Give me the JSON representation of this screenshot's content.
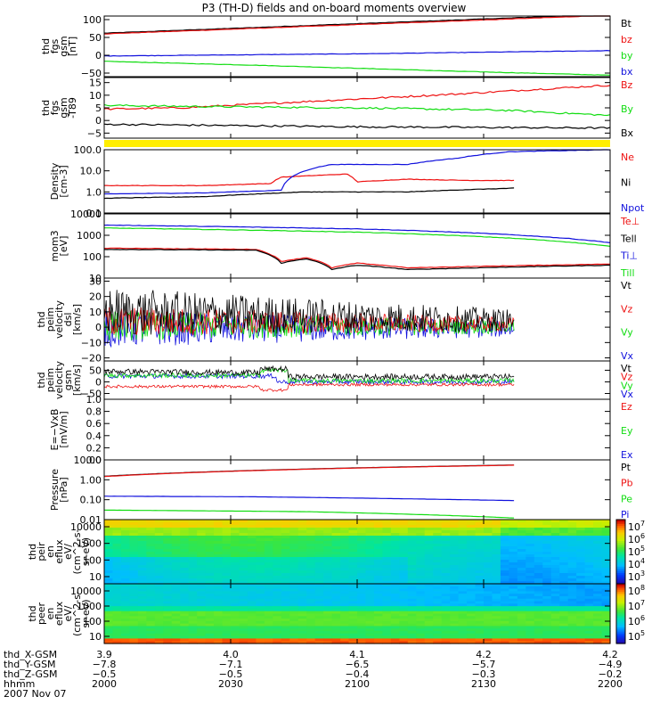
{
  "title": "P3 (TH-D) fields and on-board moments overview",
  "colors": {
    "black": "#000000",
    "red": "#ee1111",
    "green": "#11dd11",
    "blue": "#1111dd",
    "yellow": "#ffee00"
  },
  "chart_data": [
    {
      "id": "p1",
      "type": "line",
      "ylabel": [
        "thd",
        "fgs",
        "gsm",
        "[nT]"
      ],
      "yticks": [
        "100",
        "50",
        "0",
        "−50"
      ],
      "ylim": [
        -60,
        110
      ],
      "legend": [
        {
          "name": "Bt",
          "color": "black"
        },
        {
          "name": "bz",
          "color": "red"
        },
        {
          "name": "by",
          "color": "green"
        },
        {
          "name": "bx",
          "color": "blue"
        }
      ],
      "series": [
        {
          "name": "Bt",
          "color": "black",
          "x": [
            0,
            1
          ],
          "y": [
            62,
            115
          ]
        },
        {
          "name": "bz",
          "color": "red",
          "x": [
            0,
            1
          ],
          "y": [
            60,
            112
          ]
        },
        {
          "name": "by",
          "color": "green",
          "x": [
            0,
            0.3,
            0.7,
            1
          ],
          "y": [
            -17,
            -28,
            -45,
            -56
          ]
        },
        {
          "name": "bx",
          "color": "blue",
          "x": [
            0,
            0.5,
            1
          ],
          "y": [
            -2,
            4,
            13
          ]
        }
      ]
    },
    {
      "id": "p2",
      "type": "line",
      "ylabel": [
        "thd",
        "fgs",
        "gsm",
        "-T89"
      ],
      "yticks": [
        "15",
        "10",
        "5",
        "0",
        "−5"
      ],
      "ylim": [
        -7,
        17
      ],
      "legend": [
        {
          "name": "Bz",
          "color": "red"
        },
        {
          "name": "By",
          "color": "green"
        },
        {
          "name": "Bx",
          "color": "black"
        }
      ],
      "series": [
        {
          "name": "Bz",
          "color": "red",
          "x": [
            0,
            0.15,
            0.4,
            0.7,
            1
          ],
          "y": [
            4.5,
            5,
            7.5,
            10.5,
            14
          ]
        },
        {
          "name": "By",
          "color": "green",
          "x": [
            0,
            0.2,
            0.5,
            0.8,
            1
          ],
          "y": [
            6,
            5.5,
            5,
            4,
            2
          ]
        },
        {
          "name": "Bx",
          "color": "black",
          "x": [
            0,
            0.5,
            1
          ],
          "y": [
            -1.5,
            -2.5,
            -3
          ]
        }
      ]
    },
    {
      "id": "p3",
      "type": "line",
      "ylabel": [
        "Density",
        "[cm-3]"
      ],
      "yticks": [
        "100.0",
        "10.0",
        "1.0",
        "0.1"
      ],
      "ylim": [
        0.1,
        100
      ],
      "log": true,
      "legend": [
        {
          "name": "Ne",
          "color": "red"
        },
        {
          "name": "Ni",
          "color": "black"
        },
        {
          "name": "Npot",
          "color": "blue"
        }
      ],
      "series": [
        {
          "name": "Ne",
          "color": "red",
          "x": [
            0,
            0.2,
            0.33,
            0.35,
            0.48,
            0.5,
            0.6,
            0.72,
            0.81
          ],
          "y": [
            2,
            2,
            2.5,
            5,
            7,
            3,
            4,
            3.5,
            3.5
          ]
        },
        {
          "name": "Ni",
          "color": "black",
          "x": [
            0,
            0.2,
            0.4,
            0.6,
            0.81
          ],
          "y": [
            0.5,
            0.6,
            1,
            1,
            1.5
          ]
        },
        {
          "name": "Npot",
          "color": "blue",
          "x": [
            0,
            0.2,
            0.35,
            0.45,
            0.5,
            0.6,
            0.7,
            0.8,
            1
          ],
          "y": [
            0.8,
            0.9,
            1.2,
            20,
            20,
            20,
            40,
            80,
            100
          ]
        }
      ]
    },
    {
      "id": "p4",
      "type": "line",
      "ylabel": [
        "mom3",
        "[eV]"
      ],
      "yticks": [
        "10000",
        "1000",
        "100",
        "10"
      ],
      "ylim": [
        10,
        10000
      ],
      "log": true,
      "legend": [
        {
          "name": "Te⊥",
          "color": "red"
        },
        {
          "name": "Tell",
          "color": "black"
        },
        {
          "name": "Ti⊥",
          "color": "blue"
        },
        {
          "name": "Till",
          "color": "green"
        }
      ],
      "series": [
        {
          "name": "Te⊥",
          "color": "red",
          "x": [
            0,
            0.3,
            0.35,
            0.4,
            0.45,
            0.5,
            0.6,
            1
          ],
          "y": [
            250,
            220,
            60,
            90,
            30,
            50,
            30,
            45
          ]
        },
        {
          "name": "Tell",
          "color": "black",
          "x": [
            0,
            0.3,
            0.35,
            0.4,
            0.45,
            0.5,
            0.6,
            1
          ],
          "y": [
            220,
            200,
            50,
            80,
            25,
            40,
            25,
            40
          ]
        },
        {
          "name": "Ti⊥",
          "color": "blue",
          "x": [
            0,
            0.5,
            1
          ],
          "y": [
            3000,
            2000,
            450
          ]
        },
        {
          "name": "Till",
          "color": "green",
          "x": [
            0,
            0.5,
            1
          ],
          "y": [
            2200,
            1400,
            300
          ]
        }
      ]
    },
    {
      "id": "p5",
      "type": "line",
      "ylabel": [
        "thd",
        "peim",
        "velocity",
        "dsl",
        "[km/s]"
      ],
      "yticks": [
        "30",
        "20",
        "10",
        "0",
        "−10",
        "−20"
      ],
      "ylim": [
        -22,
        32
      ],
      "legend": [
        {
          "name": "Vt",
          "color": "black"
        },
        {
          "name": "Vz",
          "color": "red"
        },
        {
          "name": "Vy",
          "color": "green"
        },
        {
          "name": "Vx",
          "color": "blue"
        }
      ],
      "series": []
    },
    {
      "id": "p6",
      "type": "line",
      "ylabel": [
        "thd",
        "peim",
        "velocity",
        "gsm",
        "[km/s]"
      ],
      "yticks": [
        "50",
        "0",
        "−50"
      ],
      "ylim": [
        -75,
        90
      ],
      "legend": [
        {
          "name": "Vt",
          "color": "black"
        },
        {
          "name": "Vz",
          "color": "red"
        },
        {
          "name": "Vy",
          "color": "green"
        },
        {
          "name": "Vx",
          "color": "blue"
        }
      ],
      "series": []
    },
    {
      "id": "p7",
      "type": "line",
      "ylabel": [
        "E=−VxB",
        "[mV/m]"
      ],
      "yticks": [
        "1.0",
        "0.8",
        "0.6",
        "0.4",
        "0.2",
        "0.0"
      ],
      "ylim": [
        0,
        1
      ],
      "legend": [
        {
          "name": "Ez",
          "color": "red"
        },
        {
          "name": "Ey",
          "color": "green"
        },
        {
          "name": "Ex",
          "color": "blue"
        }
      ],
      "series": []
    },
    {
      "id": "p8",
      "type": "line",
      "ylabel": [
        "Pressure",
        "[nPa]"
      ],
      "yticks": [
        "10.00",
        "1.00",
        "0.10",
        "0.01"
      ],
      "ylim": [
        0.01,
        10
      ],
      "log": true,
      "legend": [
        {
          "name": "Pt",
          "color": "black"
        },
        {
          "name": "Pb",
          "color": "red"
        },
        {
          "name": "Pe",
          "color": "green"
        },
        {
          "name": "Pi",
          "color": "blue"
        }
      ],
      "series": [
        {
          "name": "Pt",
          "color": "black",
          "x": [
            0,
            0.81
          ],
          "y": [
            1.5,
            5.5
          ]
        },
        {
          "name": "Pb",
          "color": "red",
          "x": [
            0,
            0.81
          ],
          "y": [
            1.45,
            5.4
          ]
        },
        {
          "name": "Pi",
          "color": "blue",
          "x": [
            0,
            0.3,
            0.81
          ],
          "y": [
            0.15,
            0.14,
            0.09
          ]
        },
        {
          "name": "Pe",
          "color": "green",
          "x": [
            0,
            0.4,
            0.81
          ],
          "y": [
            0.03,
            0.025,
            0.012
          ]
        }
      ]
    },
    {
      "id": "p9",
      "type": "heatmap",
      "ylabel": [
        "thd",
        "peir",
        "en",
        "eflux",
        "eV/",
        "(cm^2-s-",
        "sr-eV)"
      ],
      "yticks": [
        "10000",
        "1000",
        "100",
        "10"
      ],
      "log": true,
      "colorbar": [
        "10^7",
        "10^6",
        "10^5",
        "10^4",
        "10^3"
      ]
    },
    {
      "id": "p10",
      "type": "heatmap",
      "ylabel": [
        "thd",
        "peer",
        "en",
        "eflux",
        "eV/",
        "(cm^2-s-",
        "sr-eV)"
      ],
      "yticks": [
        "10000",
        "1000",
        "100",
        "10"
      ],
      "log": true,
      "colorbar": [
        "10^8",
        "10^7",
        "10^6",
        "10^5"
      ]
    }
  ],
  "xaxis": {
    "rows": [
      {
        "label": "thd_X-GSM",
        "values": [
          "3.9",
          "4.0",
          "4.1",
          "4.2",
          "4.2"
        ]
      },
      {
        "label": "thd_Y-GSM",
        "values": [
          "−7.8",
          "−7.1",
          "−6.5",
          "−5.7",
          "−4.9"
        ]
      },
      {
        "label": "thd_Z-GSM",
        "values": [
          "−0.5",
          "−0.5",
          "−0.4",
          "−0.3",
          "−0.2"
        ]
      },
      {
        "label": "hhmm",
        "values": [
          "2000",
          "2030",
          "2100",
          "2130",
          "2200"
        ]
      }
    ],
    "date": "2007 Nov 07"
  }
}
